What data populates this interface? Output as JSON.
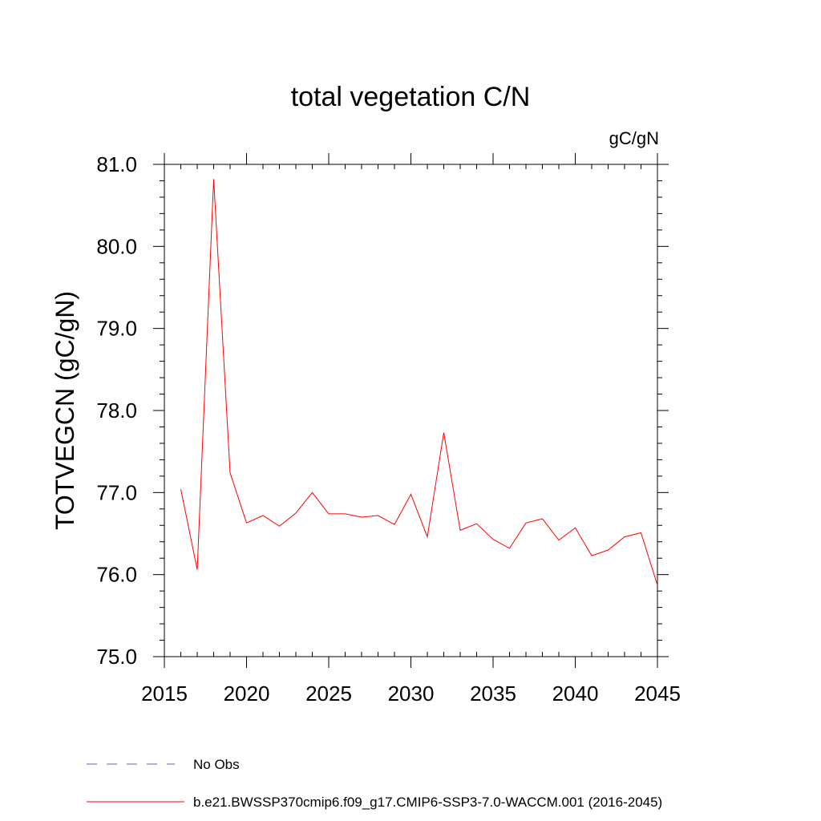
{
  "chart_data": {
    "type": "line",
    "title": "total vegetation C/N",
    "units_label": "gC/gN",
    "ylabel": "TOTVEGCN  (gC/gN)",
    "xlabel": "",
    "xlim": [
      2015,
      2045
    ],
    "ylim": [
      75.0,
      81.0
    ],
    "x_ticks": [
      2015,
      2020,
      2025,
      2030,
      2035,
      2040,
      2045
    ],
    "x_tick_labels": [
      "2015",
      "2020",
      "2025",
      "2030",
      "2035",
      "2040",
      "2045"
    ],
    "y_ticks": [
      75.0,
      76.0,
      77.0,
      78.0,
      79.0,
      80.0,
      81.0
    ],
    "y_tick_labels": [
      "75.0",
      "76.0",
      "77.0",
      "78.0",
      "79.0",
      "80.0",
      "81.0"
    ],
    "grid": false,
    "legend_position": "bottom-left",
    "legend": [
      {
        "label": "No Obs",
        "color": "#6a5acd",
        "style": "dashed"
      },
      {
        "label": "b.e21.BWSSP370cmip6.f09_g17.CMIP6-SSP3-7.0-WACCM.001 (2016-2045)",
        "color": "#ff0000",
        "style": "solid"
      }
    ],
    "series": [
      {
        "name": "b.e21.BWSSP370cmip6.f09_g17.CMIP6-SSP3-7.0-WACCM.001 (2016-2045)",
        "color": "#ff0000",
        "x": [
          2016,
          2017,
          2018,
          2019,
          2020,
          2021,
          2022,
          2023,
          2024,
          2025,
          2026,
          2027,
          2028,
          2029,
          2030,
          2031,
          2032,
          2033,
          2034,
          2035,
          2036,
          2037,
          2038,
          2039,
          2040,
          2041,
          2042,
          2043,
          2044,
          2045
        ],
        "y": [
          77.04,
          76.06,
          80.82,
          77.24,
          76.63,
          76.72,
          76.59,
          76.75,
          77.0,
          76.74,
          76.74,
          76.7,
          76.72,
          76.61,
          76.98,
          76.46,
          77.73,
          76.54,
          76.62,
          76.43,
          76.32,
          76.63,
          76.68,
          76.42,
          76.57,
          76.23,
          76.3,
          76.46,
          76.51,
          75.87
        ]
      }
    ]
  }
}
